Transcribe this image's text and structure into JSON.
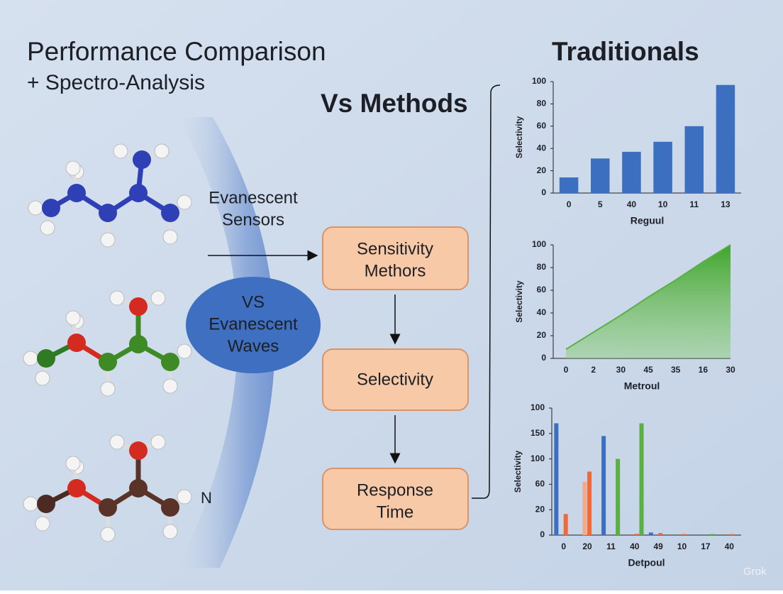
{
  "title": "Performance Comparison",
  "subtitle": "+ Spectro-Analysis",
  "vs_methods": "Vs Methods",
  "traditionals": "Traditionals",
  "sensor_label": [
    "Evanescent",
    "Sensors"
  ],
  "ellipse_label": [
    "VS",
    "Evanescent",
    "Waves"
  ],
  "atom_label": "N",
  "flow": [
    [
      "Sensitivity",
      "Methors"
    ],
    [
      "Selectivity"
    ],
    [
      "Response",
      "Time"
    ]
  ],
  "watermark": "Grok",
  "charts": [
    {
      "type": "bar",
      "ylabel": "Selectivity",
      "xlabel": "Reguul",
      "categories": [
        "0",
        "5",
        "40",
        "10",
        "11",
        "13"
      ],
      "values": [
        14,
        31,
        37,
        46,
        60,
        97
      ],
      "color": "#3d6fc0",
      "ylim": [
        0,
        100
      ],
      "yticks": [
        0,
        20,
        40,
        60,
        80,
        100
      ]
    },
    {
      "type": "area",
      "ylabel": "Selectivity",
      "xlabel": "Metroul",
      "categories": [
        "0",
        "2",
        "30",
        "45",
        "35",
        "16",
        "30"
      ],
      "values": [
        8,
        23,
        38,
        54,
        69,
        85,
        100
      ],
      "color": "#5bb043",
      "ylim": [
        0,
        100
      ],
      "yticks": [
        0,
        20,
        40,
        60,
        80,
        100
      ]
    },
    {
      "type": "grouped_bar",
      "ylabel": "Selectivity",
      "xlabel": "Detpoul",
      "categories": [
        "0",
        "20",
        "11",
        "40",
        "49",
        "10",
        "17",
        "40"
      ],
      "series": [
        {
          "color": "#3d6fc0",
          "values": [
            4.4,
            null,
            3.9,
            null,
            0.1,
            null,
            null,
            null
          ]
        },
        {
          "color": "#f6a98a",
          "values": [
            null,
            2.1,
            null,
            null,
            null,
            null,
            null,
            null
          ]
        },
        {
          "color": "#ef6a3a",
          "values": [
            0.83,
            2.5,
            null,
            0.05,
            0.08,
            0.04,
            null,
            0.04
          ]
        },
        {
          "color": "#5bb043",
          "values": [
            null,
            null,
            3.0,
            4.4,
            null,
            null,
            0.04,
            null
          ]
        }
      ],
      "ylim": [
        0,
        5
      ],
      "yticks": [
        0,
        {
          "value": 1,
          "label": "20"
        },
        {
          "value": 2,
          "label": "60"
        },
        {
          "value": 3,
          "label": "100"
        },
        {
          "value": 4,
          "label": "150"
        },
        {
          "value": 5,
          "label": "100"
        }
      ]
    }
  ]
}
